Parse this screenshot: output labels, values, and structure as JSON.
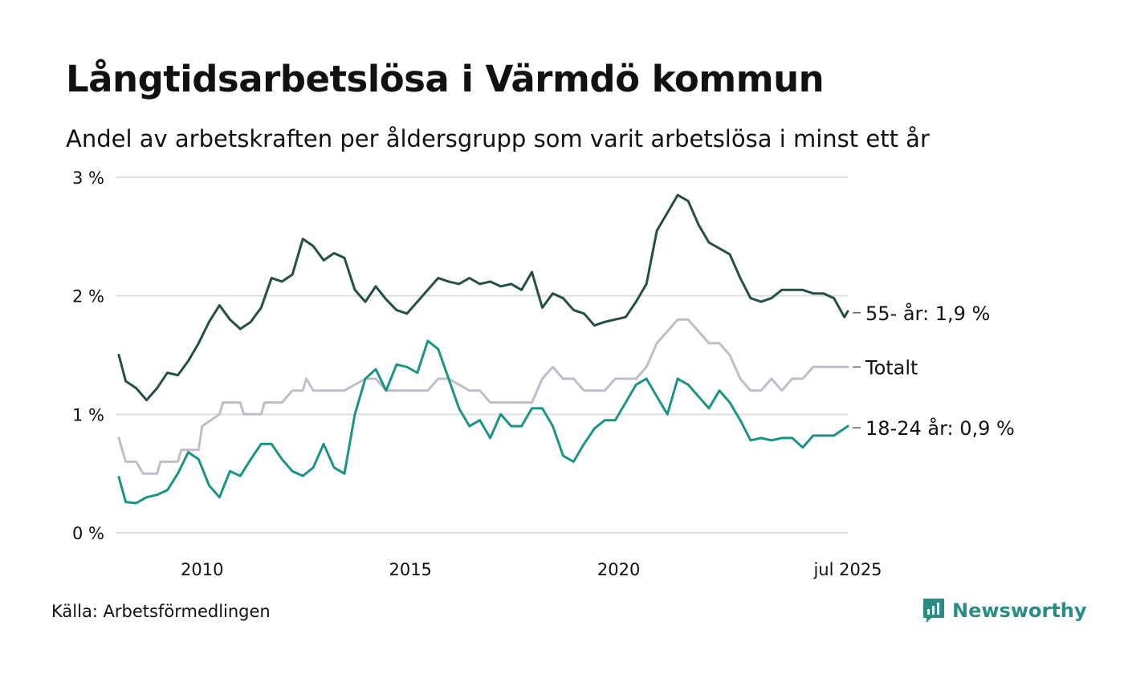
{
  "header": {
    "title": "Långtidsarbetslösa i Värmdö kommun",
    "subtitle": "Andel av arbetskraften per åldersgrupp som varit arbetslösa i minst ett år"
  },
  "footer": {
    "source": "Källa: Arbetsförmedlingen",
    "brand": "Newsworthy"
  },
  "colors": {
    "older": "#234f47",
    "total": "#c0bccb",
    "young": "#1a9484",
    "grid": "#dedde2",
    "brand": "#2a8c82"
  },
  "chart_data": {
    "type": "line",
    "title": "Långtidsarbetslösa i Värmdö kommun",
    "subtitle": "Andel av arbetskraften per åldersgrupp som varit arbetslösa i minst ett år",
    "xlabel": "",
    "ylabel": "",
    "x_start": "2008-01",
    "x_end": "2025-07",
    "ylim": [
      0,
      3
    ],
    "y_ticks": [
      0,
      1,
      2,
      3
    ],
    "y_tick_labels": [
      "0 %",
      "1 %",
      "2 %",
      "3 %"
    ],
    "x_ticks": [
      {
        "x": "2010-01",
        "label": "2010"
      },
      {
        "x": "2015-01",
        "label": "2015"
      },
      {
        "x": "2020-01",
        "label": "2020"
      },
      {
        "x": "2025-07",
        "label": "jul 2025"
      }
    ],
    "grid": true,
    "series": [
      {
        "name": "55- år",
        "end_label": "55- år: 1,9 %",
        "color": "#234f47",
        "points": [
          [
            "2008-01",
            1.5
          ],
          [
            "2008-03",
            1.28
          ],
          [
            "2008-06",
            1.22
          ],
          [
            "2008-09",
            1.12
          ],
          [
            "2008-12",
            1.22
          ],
          [
            "2009-03",
            1.35
          ],
          [
            "2009-06",
            1.33
          ],
          [
            "2009-09",
            1.45
          ],
          [
            "2009-12",
            1.6
          ],
          [
            "2010-03",
            1.78
          ],
          [
            "2010-06",
            1.92
          ],
          [
            "2010-09",
            1.8
          ],
          [
            "2010-12",
            1.72
          ],
          [
            "2011-03",
            1.78
          ],
          [
            "2011-06",
            1.9
          ],
          [
            "2011-09",
            2.15
          ],
          [
            "2011-12",
            2.12
          ],
          [
            "2012-03",
            2.18
          ],
          [
            "2012-06",
            2.48
          ],
          [
            "2012-09",
            2.42
          ],
          [
            "2012-12",
            2.3
          ],
          [
            "2013-03",
            2.36
          ],
          [
            "2013-06",
            2.32
          ],
          [
            "2013-09",
            2.05
          ],
          [
            "2013-12",
            1.95
          ],
          [
            "2014-03",
            2.08
          ],
          [
            "2014-06",
            1.97
          ],
          [
            "2014-09",
            1.88
          ],
          [
            "2014-12",
            1.85
          ],
          [
            "2015-03",
            1.95
          ],
          [
            "2015-06",
            2.05
          ],
          [
            "2015-09",
            2.15
          ],
          [
            "2015-12",
            2.12
          ],
          [
            "2016-03",
            2.1
          ],
          [
            "2016-06",
            2.15
          ],
          [
            "2016-09",
            2.1
          ],
          [
            "2016-12",
            2.12
          ],
          [
            "2017-03",
            2.08
          ],
          [
            "2017-06",
            2.1
          ],
          [
            "2017-09",
            2.05
          ],
          [
            "2017-12",
            2.2
          ],
          [
            "2018-03",
            1.9
          ],
          [
            "2018-06",
            2.02
          ],
          [
            "2018-09",
            1.98
          ],
          [
            "2018-12",
            1.88
          ],
          [
            "2019-03",
            1.85
          ],
          [
            "2019-06",
            1.75
          ],
          [
            "2019-09",
            1.78
          ],
          [
            "2019-12",
            1.8
          ],
          [
            "2020-03",
            1.82
          ],
          [
            "2020-06",
            1.95
          ],
          [
            "2020-09",
            2.1
          ],
          [
            "2020-12",
            2.55
          ],
          [
            "2021-03",
            2.7
          ],
          [
            "2021-06",
            2.85
          ],
          [
            "2021-09",
            2.8
          ],
          [
            "2021-12",
            2.6
          ],
          [
            "2022-03",
            2.45
          ],
          [
            "2022-06",
            2.4
          ],
          [
            "2022-09",
            2.35
          ],
          [
            "2022-12",
            2.15
          ],
          [
            "2023-03",
            1.98
          ],
          [
            "2023-06",
            1.95
          ],
          [
            "2023-09",
            1.98
          ],
          [
            "2023-12",
            2.05
          ],
          [
            "2024-03",
            2.05
          ],
          [
            "2024-06",
            2.05
          ],
          [
            "2024-09",
            2.02
          ],
          [
            "2024-12",
            2.02
          ],
          [
            "2025-03",
            1.98
          ],
          [
            "2025-06",
            1.82
          ],
          [
            "2025-07",
            1.87
          ]
        ]
      },
      {
        "name": "Totalt",
        "end_label": "Totalt",
        "color": "#c0bccb",
        "points": [
          [
            "2008-01",
            0.8
          ],
          [
            "2008-03",
            0.6
          ],
          [
            "2008-06",
            0.6
          ],
          [
            "2008-08",
            0.5
          ],
          [
            "2008-12",
            0.5
          ],
          [
            "2009-01",
            0.6
          ],
          [
            "2009-06",
            0.6
          ],
          [
            "2009-07",
            0.7
          ],
          [
            "2009-12",
            0.7
          ],
          [
            "2010-01",
            0.9
          ],
          [
            "2010-06",
            1.0
          ],
          [
            "2010-07",
            1.1
          ],
          [
            "2010-12",
            1.1
          ],
          [
            "2011-01",
            1.0
          ],
          [
            "2011-06",
            1.0
          ],
          [
            "2011-07",
            1.1
          ],
          [
            "2011-12",
            1.1
          ],
          [
            "2012-03",
            1.2
          ],
          [
            "2012-06",
            1.2
          ],
          [
            "2012-07",
            1.3
          ],
          [
            "2012-09",
            1.2
          ],
          [
            "2012-12",
            1.2
          ],
          [
            "2013-06",
            1.2
          ],
          [
            "2013-12",
            1.3
          ],
          [
            "2014-03",
            1.3
          ],
          [
            "2014-06",
            1.2
          ],
          [
            "2014-12",
            1.2
          ],
          [
            "2015-03",
            1.2
          ],
          [
            "2015-06",
            1.2
          ],
          [
            "2015-09",
            1.3
          ],
          [
            "2015-12",
            1.3
          ],
          [
            "2016-06",
            1.2
          ],
          [
            "2016-09",
            1.2
          ],
          [
            "2016-12",
            1.1
          ],
          [
            "2017-06",
            1.1
          ],
          [
            "2017-12",
            1.1
          ],
          [
            "2018-03",
            1.3
          ],
          [
            "2018-06",
            1.4
          ],
          [
            "2018-09",
            1.3
          ],
          [
            "2018-12",
            1.3
          ],
          [
            "2019-03",
            1.2
          ],
          [
            "2019-06",
            1.2
          ],
          [
            "2019-09",
            1.2
          ],
          [
            "2019-12",
            1.3
          ],
          [
            "2020-06",
            1.3
          ],
          [
            "2020-09",
            1.4
          ],
          [
            "2020-12",
            1.6
          ],
          [
            "2021-03",
            1.7
          ],
          [
            "2021-06",
            1.8
          ],
          [
            "2021-09",
            1.8
          ],
          [
            "2021-12",
            1.7
          ],
          [
            "2022-03",
            1.6
          ],
          [
            "2022-06",
            1.6
          ],
          [
            "2022-09",
            1.5
          ],
          [
            "2022-12",
            1.3
          ],
          [
            "2023-03",
            1.2
          ],
          [
            "2023-06",
            1.2
          ],
          [
            "2023-09",
            1.3
          ],
          [
            "2023-12",
            1.2
          ],
          [
            "2024-03",
            1.3
          ],
          [
            "2024-06",
            1.3
          ],
          [
            "2024-09",
            1.4
          ],
          [
            "2024-12",
            1.4
          ],
          [
            "2025-03",
            1.4
          ],
          [
            "2025-07",
            1.4
          ]
        ]
      },
      {
        "name": "18-24 år",
        "end_label": "18-24 år: 0,9 %",
        "color": "#1a9484",
        "points": [
          [
            "2008-01",
            0.47
          ],
          [
            "2008-03",
            0.26
          ],
          [
            "2008-06",
            0.25
          ],
          [
            "2008-09",
            0.3
          ],
          [
            "2008-12",
            0.32
          ],
          [
            "2009-03",
            0.36
          ],
          [
            "2009-06",
            0.5
          ],
          [
            "2009-09",
            0.68
          ],
          [
            "2009-12",
            0.62
          ],
          [
            "2010-03",
            0.4
          ],
          [
            "2010-06",
            0.3
          ],
          [
            "2010-09",
            0.52
          ],
          [
            "2010-12",
            0.48
          ],
          [
            "2011-03",
            0.62
          ],
          [
            "2011-06",
            0.75
          ],
          [
            "2011-09",
            0.75
          ],
          [
            "2011-12",
            0.62
          ],
          [
            "2012-03",
            0.52
          ],
          [
            "2012-06",
            0.48
          ],
          [
            "2012-09",
            0.55
          ],
          [
            "2012-12",
            0.75
          ],
          [
            "2013-03",
            0.55
          ],
          [
            "2013-06",
            0.5
          ],
          [
            "2013-09",
            1.0
          ],
          [
            "2013-12",
            1.3
          ],
          [
            "2014-03",
            1.38
          ],
          [
            "2014-06",
            1.2
          ],
          [
            "2014-09",
            1.42
          ],
          [
            "2014-12",
            1.4
          ],
          [
            "2015-03",
            1.35
          ],
          [
            "2015-06",
            1.62
          ],
          [
            "2015-09",
            1.55
          ],
          [
            "2015-12",
            1.3
          ],
          [
            "2016-03",
            1.05
          ],
          [
            "2016-06",
            0.9
          ],
          [
            "2016-09",
            0.95
          ],
          [
            "2016-12",
            0.8
          ],
          [
            "2017-03",
            1.0
          ],
          [
            "2017-06",
            0.9
          ],
          [
            "2017-09",
            0.9
          ],
          [
            "2017-12",
            1.05
          ],
          [
            "2018-03",
            1.05
          ],
          [
            "2018-06",
            0.9
          ],
          [
            "2018-09",
            0.65
          ],
          [
            "2018-12",
            0.6
          ],
          [
            "2019-03",
            0.75
          ],
          [
            "2019-06",
            0.88
          ],
          [
            "2019-09",
            0.95
          ],
          [
            "2019-12",
            0.95
          ],
          [
            "2020-03",
            1.1
          ],
          [
            "2020-06",
            1.25
          ],
          [
            "2020-09",
            1.3
          ],
          [
            "2020-12",
            1.15
          ],
          [
            "2021-03",
            1.0
          ],
          [
            "2021-06",
            1.3
          ],
          [
            "2021-09",
            1.25
          ],
          [
            "2021-12",
            1.15
          ],
          [
            "2022-03",
            1.05
          ],
          [
            "2022-06",
            1.2
          ],
          [
            "2022-09",
            1.1
          ],
          [
            "2022-12",
            0.95
          ],
          [
            "2023-03",
            0.78
          ],
          [
            "2023-06",
            0.8
          ],
          [
            "2023-09",
            0.78
          ],
          [
            "2023-12",
            0.8
          ],
          [
            "2024-03",
            0.8
          ],
          [
            "2024-06",
            0.72
          ],
          [
            "2024-09",
            0.82
          ],
          [
            "2024-12",
            0.82
          ],
          [
            "2025-03",
            0.82
          ],
          [
            "2025-06",
            0.88
          ],
          [
            "2025-07",
            0.9
          ]
        ]
      }
    ]
  }
}
